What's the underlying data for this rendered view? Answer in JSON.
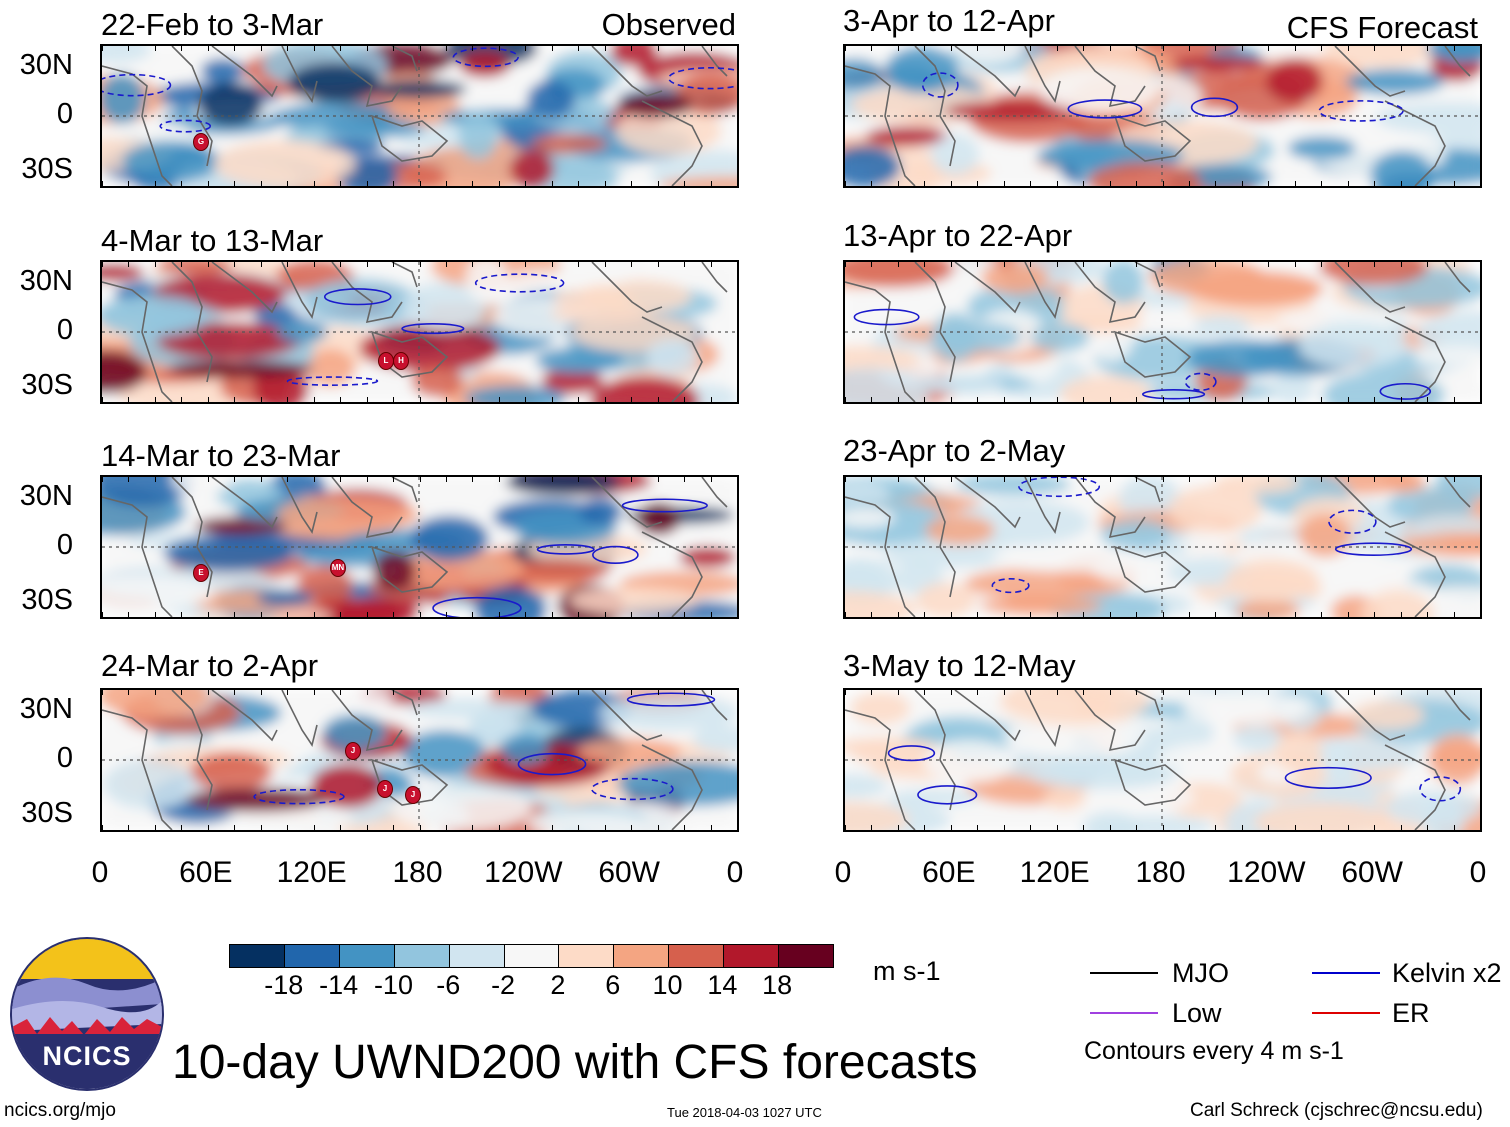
{
  "title": "10-day UWND200 with CFS forecasts",
  "left_column_label": "Observed",
  "right_column_label": "CFS Forecast",
  "panels_left": [
    {
      "title": "22-Feb to 3-Mar"
    },
    {
      "title": "4-Mar to 13-Mar"
    },
    {
      "title": "14-Mar to 23-Mar"
    },
    {
      "title": "24-Mar to 2-Apr"
    }
  ],
  "panels_right": [
    {
      "title": "3-Apr to 12-Apr"
    },
    {
      "title": "13-Apr to 22-Apr"
    },
    {
      "title": "23-Apr to 2-May"
    },
    {
      "title": "3-May to 12-May"
    }
  ],
  "lat_labels": [
    "30N",
    "0",
    "30S"
  ],
  "lon_labels": [
    "0",
    "60E",
    "120E",
    "180",
    "120W",
    "60W",
    "0"
  ],
  "colorbar": {
    "units": "m s-1",
    "ticks": [
      "-18",
      "-14",
      "-10",
      "-6",
      "-2",
      "2",
      "6",
      "10",
      "14",
      "18"
    ],
    "colors": [
      "#053061",
      "#2166ac",
      "#4393c3",
      "#92c5de",
      "#d1e5f0",
      "#f7f7f7",
      "#fddbc7",
      "#f4a582",
      "#d6604d",
      "#b2182b",
      "#67001f"
    ]
  },
  "legend": {
    "items": [
      {
        "label": "MJO",
        "color": "#000000"
      },
      {
        "label": "Kelvin x2",
        "color": "#0000cc"
      },
      {
        "label": "Low",
        "color": "#a040e0"
      },
      {
        "label": "ER",
        "color": "#dd0000"
      }
    ],
    "note": "Contours every 4 m s-1"
  },
  "logo_text": "NCICS",
  "footer": {
    "url": "ncics.org/mjo",
    "timestamp": "Tue 2018-04-03 1027 UTC",
    "author": "Carl Schreck (cjschrec@ncsu.edu)"
  },
  "storm_markers": [
    {
      "panel": "left-0",
      "labels": [
        "G"
      ]
    },
    {
      "panel": "left-1",
      "labels": [
        "L",
        "H"
      ]
    },
    {
      "panel": "left-2",
      "labels": [
        "E",
        "MN"
      ]
    },
    {
      "panel": "left-3",
      "labels": [
        "J",
        "J",
        "J"
      ]
    }
  ]
}
